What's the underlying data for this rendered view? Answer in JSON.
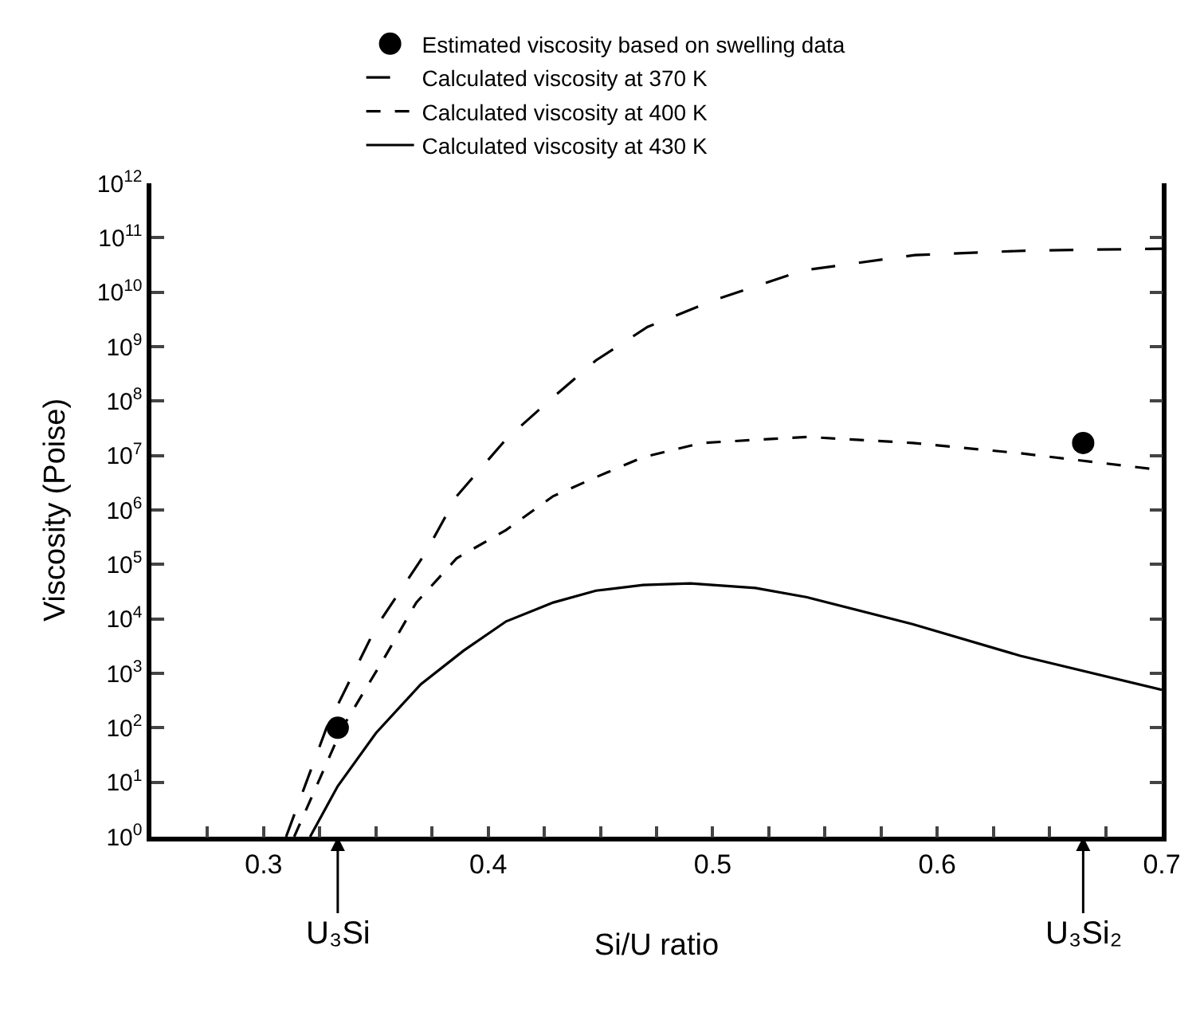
{
  "chart_data": {
    "type": "line",
    "xlabel": "Si/U ratio",
    "ylabel": "Viscosity (Poise)",
    "log": "y",
    "legend": "top",
    "xlim": [
      0.25,
      0.7
    ],
    "ylim": [
      1,
      1000000000000.0
    ],
    "xticks": [
      {
        "value": 0.275,
        "label": null
      },
      0.3,
      {
        "value": 0.325,
        "label": null
      },
      {
        "value": 0.35,
        "label": null
      },
      {
        "value": 0.375,
        "label": null
      },
      0.4,
      {
        "value": 0.425,
        "label": null
      },
      {
        "value": 0.45,
        "label": null
      },
      {
        "value": 0.475,
        "label": null
      },
      0.5,
      {
        "value": 0.525,
        "label": null
      },
      {
        "value": 0.55,
        "label": null
      },
      {
        "value": 0.575,
        "label": null
      },
      0.6,
      {
        "value": 0.625,
        "label": null
      },
      {
        "value": 0.65,
        "label": null
      },
      {
        "value": 0.675,
        "label": null
      },
      0.7
    ],
    "yticks": [
      {
        "value": 1,
        "label": "10$^{0}$"
      },
      {
        "value": 10,
        "label": "10$^{1}$"
      },
      {
        "value": 100,
        "label": "10$^{2}$"
      },
      {
        "value": 1000,
        "label": "10$^{3}$"
      },
      {
        "value": 10000,
        "label": "10$^{4}$"
      },
      {
        "value": 100000,
        "label": "10$^{5}$"
      },
      {
        "value": 1000000,
        "label": "10$^{6}$"
      },
      {
        "value": 10000000,
        "label": "10$^{7}$"
      },
      {
        "value": 100000000,
        "label": "10$^{8}$"
      },
      {
        "value": 1000000000,
        "label": "10$^{9}$"
      },
      {
        "value": 10000000000,
        "label": "10$^{10}$"
      },
      {
        "value": 100000000000,
        "label": "10$^{11}$"
      },
      {
        "value": 1000000000000,
        "label": "10$^{12}$"
      }
    ],
    "series": [
      {
        "name": "Estimated viscosity based on swelling data",
        "type": "scatter",
        "marker": "circle",
        "color": "#000000",
        "x": [
          0.333,
          0.665
        ],
        "values": [
          100,
          17000000
        ]
      },
      {
        "name": "Calculated viscosity at 370 K",
        "marker": "none",
        "line_style": "longdash",
        "color": "#000000",
        "x": [
          0.31,
          0.328,
          0.35,
          0.372,
          0.386,
          0.408,
          0.427,
          0.448,
          0.471,
          0.5,
          0.54,
          0.59,
          0.64,
          0.7
        ],
        "values": [
          1,
          100,
          7000,
          160000,
          1800000,
          20000000,
          100000000,
          560000000,
          2300000000,
          7000000000,
          25000000000,
          48000000000,
          58000000000,
          63000000000
        ]
      },
      {
        "name": "Calculated viscosity at 400 K",
        "marker": "none",
        "line_style": "dashed",
        "color": "#000000",
        "x": [
          0.3136,
          0.335,
          0.354,
          0.368,
          0.386,
          0.408,
          0.429,
          0.448,
          0.469,
          0.495,
          0.542,
          0.589,
          0.637,
          0.7
        ],
        "values": [
          1,
          100,
          2000,
          20000,
          130000,
          430000,
          1800000,
          4000000,
          9300000,
          17000000,
          22000000,
          17000000,
          11000000,
          5400000
        ]
      },
      {
        "name": "Calculated viscosity at 430 K",
        "marker": "none",
        "line_style": "solid",
        "color": "#000000",
        "x": [
          0.3207,
          0.333,
          0.35,
          0.37,
          0.389,
          0.408,
          0.429,
          0.448,
          0.469,
          0.49,
          0.519,
          0.542,
          0.589,
          0.637,
          0.7
        ],
        "values": [
          1,
          8.5,
          80,
          630,
          2600,
          9000,
          20000,
          33000,
          42000,
          45000,
          37000,
          25000,
          8000,
          2100,
          500
        ]
      }
    ],
    "annotations": [
      "U₃Si",
      "U₃Si₂"
    ]
  }
}
